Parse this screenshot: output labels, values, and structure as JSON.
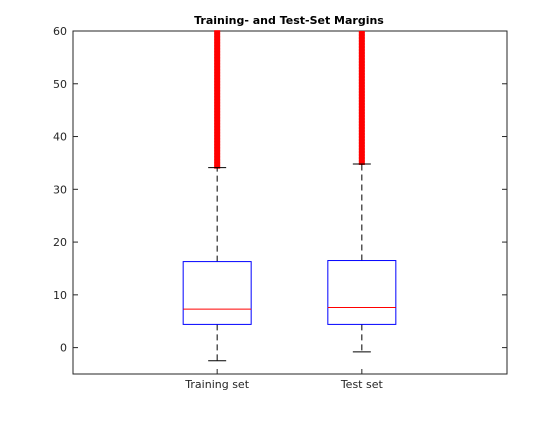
{
  "chart_data": {
    "type": "box",
    "title": "Training- and Test-Set Margins",
    "xlabel": "",
    "ylabel": "",
    "ylim": [
      -5,
      60
    ],
    "yticks": [
      0,
      10,
      20,
      30,
      40,
      50,
      60
    ],
    "grid": false,
    "legend": "none",
    "categories": [
      "Training set",
      "Test set"
    ],
    "boxes": [
      {
        "category": "Training set",
        "lower_whisker": -2.5,
        "q1": 4.4,
        "median": 7.3,
        "q3": 16.3,
        "upper_whisker": 34.1,
        "outlier_min": 34.1,
        "outlier_max": 60
      },
      {
        "category": "Test set",
        "lower_whisker": -0.8,
        "q1": 4.4,
        "median": 7.6,
        "q3": 16.5,
        "upper_whisker": 34.8,
        "outlier_min": 34.8,
        "outlier_max": 60
      }
    ],
    "colors": {
      "box": "#0000ff",
      "median": "#ff0000",
      "whisker": "#000000",
      "outlier": "#ff0000",
      "axis": "#262626"
    }
  }
}
